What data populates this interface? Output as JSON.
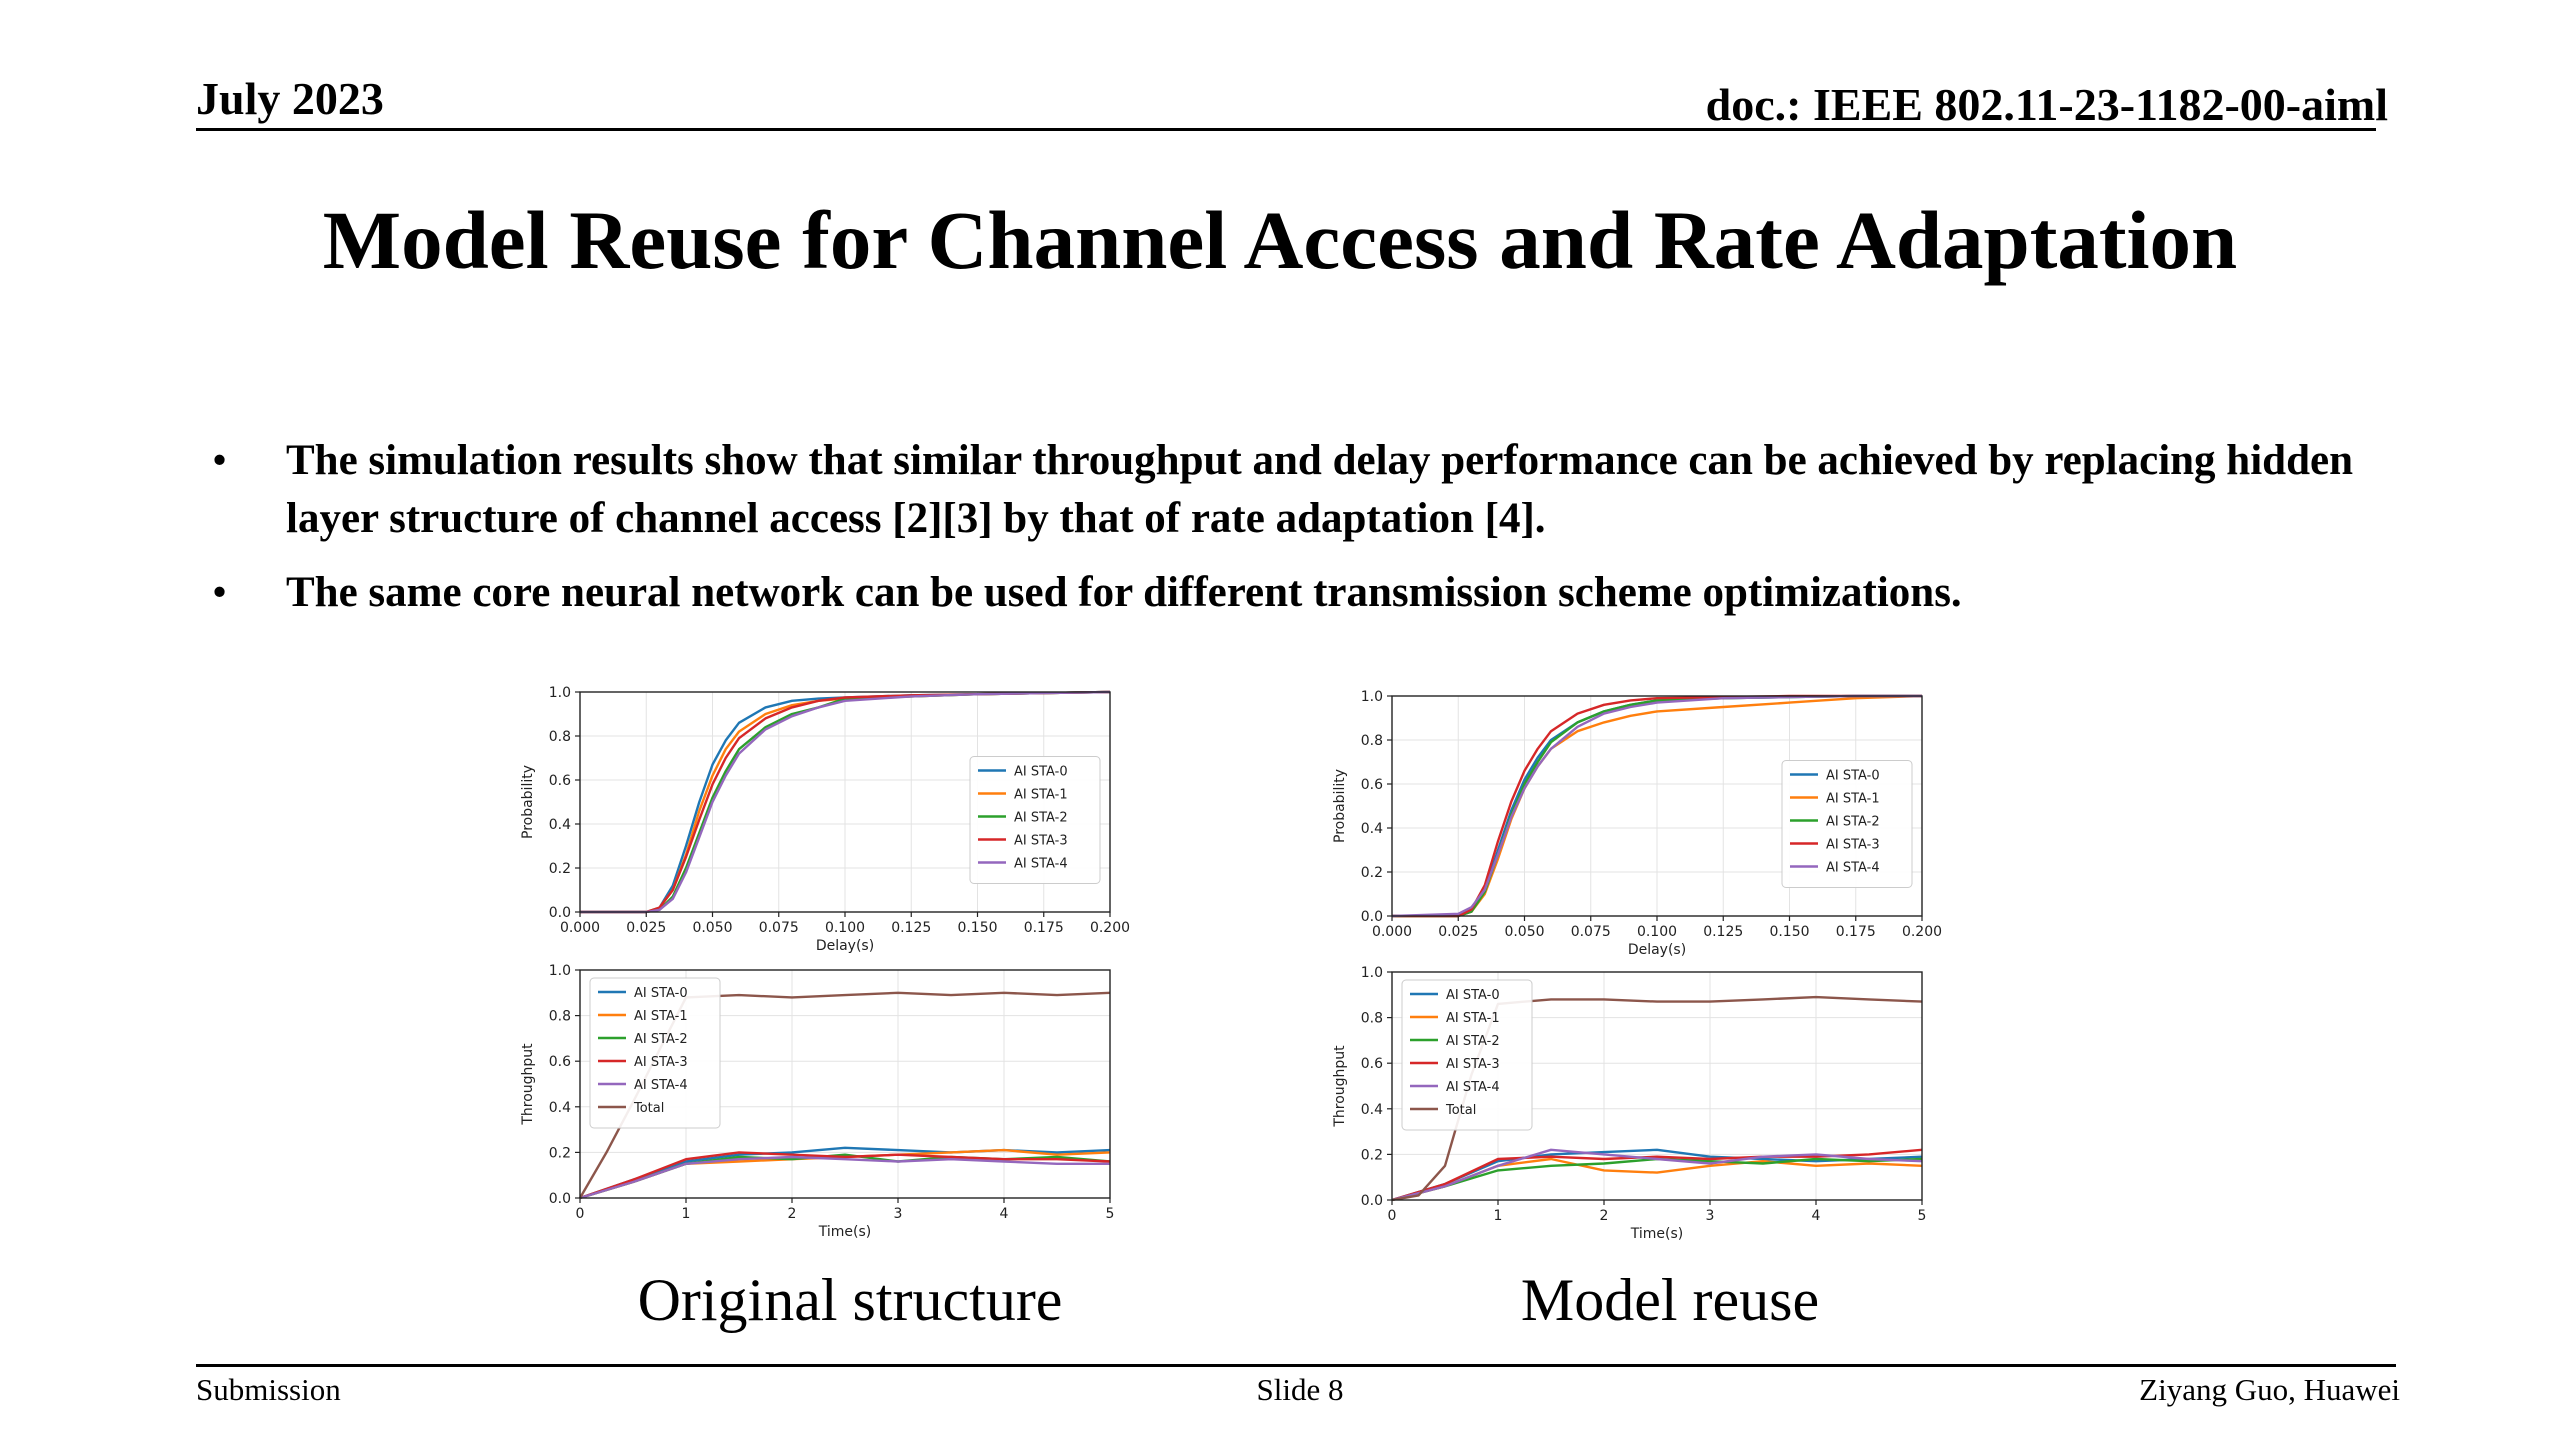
{
  "header": {
    "date": "July 2023",
    "doc": "doc.: IEEE 802.11-23-1182-00-aiml"
  },
  "title": "Model Reuse for Channel Access and Rate Adaptation",
  "bullets": [
    {
      "marker": "•",
      "text": "The simulation results show that similar throughput and delay performance can be achieved by replacing hidden layer structure of channel access [2][3] by that of rate adaptation [4]."
    },
    {
      "marker": "•",
      "text": "The same core neural network can be used for different transmission scheme optimizations."
    }
  ],
  "captions": {
    "left": "Original structure",
    "right": "Model reuse"
  },
  "footer": {
    "left": "Submission",
    "center": "Slide 8",
    "right": "Ziyang Guo, Huawei"
  },
  "colors": {
    "AI STA-0": "#1f77b4",
    "AI STA-1": "#ff7f0e",
    "AI STA-2": "#2ca02c",
    "AI STA-3": "#d62728",
    "AI STA-4": "#9467bd",
    "Total": "#8c564b"
  },
  "chart_data": [
    {
      "type": "line",
      "title": "",
      "xlabel": "Delay(s)",
      "ylabel": "Probability",
      "xlim": [
        0,
        0.2
      ],
      "ylim": [
        0,
        1.0
      ],
      "xticks": [
        0.0,
        0.025,
        0.05,
        0.075,
        0.1,
        0.125,
        0.15,
        0.175,
        0.2
      ],
      "xtick_labels": [
        "0.000",
        "0.025",
        "0.050",
        "0.075",
        "0.100",
        "0.125",
        "0.150",
        "0.175",
        "0.200"
      ],
      "yticks": [
        0.0,
        0.2,
        0.4,
        0.6,
        0.8,
        1.0
      ],
      "ytick_labels": [
        "0.0",
        "0.2",
        "0.4",
        "0.6",
        "0.8",
        "1.0"
      ],
      "grid": true,
      "legend": "center-right",
      "series": [
        {
          "name": "AI STA-0",
          "x": [
            0,
            0.025,
            0.03,
            0.035,
            0.04,
            0.045,
            0.05,
            0.055,
            0.06,
            0.07,
            0.08,
            0.09,
            0.1,
            0.125,
            0.15,
            0.175,
            0.2
          ],
          "y": [
            0,
            0,
            0.02,
            0.12,
            0.3,
            0.5,
            0.67,
            0.78,
            0.86,
            0.93,
            0.96,
            0.97,
            0.975,
            0.985,
            0.99,
            0.995,
            1.0
          ]
        },
        {
          "name": "AI STA-1",
          "x": [
            0,
            0.025,
            0.03,
            0.035,
            0.04,
            0.045,
            0.05,
            0.055,
            0.06,
            0.07,
            0.08,
            0.09,
            0.1,
            0.125,
            0.15,
            0.175,
            0.2
          ],
          "y": [
            0,
            0,
            0.02,
            0.1,
            0.26,
            0.46,
            0.62,
            0.74,
            0.82,
            0.9,
            0.94,
            0.96,
            0.97,
            0.98,
            0.99,
            0.995,
            1.0
          ]
        },
        {
          "name": "AI STA-2",
          "x": [
            0,
            0.025,
            0.03,
            0.035,
            0.04,
            0.045,
            0.05,
            0.055,
            0.06,
            0.07,
            0.08,
            0.09,
            0.1,
            0.125,
            0.15,
            0.175,
            0.2
          ],
          "y": [
            0,
            0,
            0.01,
            0.07,
            0.2,
            0.36,
            0.52,
            0.64,
            0.74,
            0.84,
            0.9,
            0.93,
            0.97,
            0.98,
            0.99,
            0.995,
            1.0
          ]
        },
        {
          "name": "AI STA-3",
          "x": [
            0,
            0.025,
            0.03,
            0.035,
            0.04,
            0.045,
            0.05,
            0.055,
            0.06,
            0.07,
            0.08,
            0.09,
            0.1,
            0.125,
            0.15,
            0.175,
            0.2
          ],
          "y": [
            0,
            0,
            0.02,
            0.1,
            0.25,
            0.42,
            0.58,
            0.7,
            0.79,
            0.88,
            0.93,
            0.96,
            0.975,
            0.985,
            0.99,
            0.995,
            1.0
          ]
        },
        {
          "name": "AI STA-4",
          "x": [
            0,
            0.025,
            0.03,
            0.035,
            0.04,
            0.045,
            0.05,
            0.055,
            0.06,
            0.07,
            0.08,
            0.09,
            0.1,
            0.125,
            0.15,
            0.175,
            0.2
          ],
          "y": [
            0,
            0,
            0.01,
            0.06,
            0.18,
            0.34,
            0.5,
            0.62,
            0.72,
            0.83,
            0.89,
            0.93,
            0.96,
            0.98,
            0.99,
            0.995,
            1.0
          ]
        }
      ]
    },
    {
      "type": "line",
      "title": "",
      "xlabel": "Time(s)",
      "ylabel": "Throughput",
      "xlim": [
        0,
        5
      ],
      "ylim": [
        0,
        1.0
      ],
      "xticks": [
        0,
        1,
        2,
        3,
        4,
        5
      ],
      "xtick_labels": [
        "0",
        "1",
        "2",
        "3",
        "4",
        "5"
      ],
      "yticks": [
        0.0,
        0.2,
        0.4,
        0.6,
        0.8,
        1.0
      ],
      "ytick_labels": [
        "0.0",
        "0.2",
        "0.4",
        "0.6",
        "0.8",
        "1.0"
      ],
      "grid": true,
      "legend": "top-left",
      "series": [
        {
          "name": "AI STA-0",
          "x": [
            0,
            0.5,
            1,
            1.5,
            2,
            2.5,
            3,
            3.5,
            4,
            4.5,
            5
          ],
          "y": [
            0,
            0.08,
            0.16,
            0.19,
            0.2,
            0.22,
            0.21,
            0.2,
            0.21,
            0.2,
            0.21
          ]
        },
        {
          "name": "AI STA-1",
          "x": [
            0,
            0.5,
            1,
            1.5,
            2,
            2.5,
            3,
            3.5,
            4,
            4.5,
            5
          ],
          "y": [
            0,
            0.07,
            0.15,
            0.16,
            0.17,
            0.18,
            0.19,
            0.2,
            0.21,
            0.19,
            0.2
          ]
        },
        {
          "name": "AI STA-2",
          "x": [
            0,
            0.5,
            1,
            1.5,
            2,
            2.5,
            3,
            3.5,
            4,
            4.5,
            5
          ],
          "y": [
            0,
            0.07,
            0.15,
            0.18,
            0.17,
            0.19,
            0.16,
            0.18,
            0.17,
            0.18,
            0.16
          ]
        },
        {
          "name": "AI STA-3",
          "x": [
            0,
            0.5,
            1,
            1.5,
            2,
            2.5,
            3,
            3.5,
            4,
            4.5,
            5
          ],
          "y": [
            0,
            0.08,
            0.17,
            0.2,
            0.19,
            0.18,
            0.19,
            0.18,
            0.17,
            0.17,
            0.16
          ]
        },
        {
          "name": "AI STA-4",
          "x": [
            0,
            0.5,
            1,
            1.5,
            2,
            2.5,
            3,
            3.5,
            4,
            4.5,
            5
          ],
          "y": [
            0,
            0.07,
            0.15,
            0.17,
            0.18,
            0.17,
            0.16,
            0.17,
            0.16,
            0.15,
            0.15
          ]
        },
        {
          "name": "Total",
          "x": [
            0,
            0.25,
            0.5,
            0.75,
            1,
            1.5,
            2,
            2.5,
            3,
            3.5,
            4,
            4.5,
            5
          ],
          "y": [
            0,
            0.2,
            0.42,
            0.65,
            0.88,
            0.89,
            0.88,
            0.89,
            0.9,
            0.89,
            0.9,
            0.89,
            0.9
          ]
        }
      ]
    },
    {
      "type": "line",
      "title": "",
      "xlabel": "Delay(s)",
      "ylabel": "Probability",
      "xlim": [
        0,
        0.2
      ],
      "ylim": [
        0,
        1.0
      ],
      "xticks": [
        0.0,
        0.025,
        0.05,
        0.075,
        0.1,
        0.125,
        0.15,
        0.175,
        0.2
      ],
      "xtick_labels": [
        "0.000",
        "0.025",
        "0.050",
        "0.075",
        "0.100",
        "0.125",
        "0.150",
        "0.175",
        "0.200"
      ],
      "yticks": [
        0.0,
        0.2,
        0.4,
        0.6,
        0.8,
        1.0
      ],
      "ytick_labels": [
        "0.0",
        "0.2",
        "0.4",
        "0.6",
        "0.8",
        "1.0"
      ],
      "grid": true,
      "legend": "center-right",
      "series": [
        {
          "name": "AI STA-0",
          "x": [
            0,
            0.025,
            0.03,
            0.035,
            0.04,
            0.045,
            0.05,
            0.055,
            0.06,
            0.07,
            0.08,
            0.09,
            0.1,
            0.125,
            0.15,
            0.175,
            0.2
          ],
          "y": [
            0,
            0,
            0.02,
            0.12,
            0.3,
            0.48,
            0.62,
            0.72,
            0.8,
            0.88,
            0.93,
            0.96,
            0.98,
            0.99,
            0.995,
            1.0,
            1.0
          ]
        },
        {
          "name": "AI STA-1",
          "x": [
            0,
            0.025,
            0.03,
            0.035,
            0.04,
            0.045,
            0.05,
            0.055,
            0.06,
            0.07,
            0.08,
            0.09,
            0.1,
            0.125,
            0.15,
            0.175,
            0.2
          ],
          "y": [
            0,
            0,
            0.02,
            0.1,
            0.26,
            0.44,
            0.58,
            0.68,
            0.76,
            0.84,
            0.88,
            0.91,
            0.93,
            0.95,
            0.97,
            0.99,
            1.0
          ]
        },
        {
          "name": "AI STA-2",
          "x": [
            0,
            0.025,
            0.03,
            0.035,
            0.04,
            0.045,
            0.05,
            0.055,
            0.06,
            0.07,
            0.08,
            0.09,
            0.1,
            0.125,
            0.15,
            0.175,
            0.2
          ],
          "y": [
            0,
            0,
            0.02,
            0.11,
            0.28,
            0.46,
            0.6,
            0.7,
            0.79,
            0.88,
            0.93,
            0.96,
            0.98,
            0.99,
            0.995,
            1.0,
            1.0
          ]
        },
        {
          "name": "AI STA-3",
          "x": [
            0,
            0.025,
            0.03,
            0.035,
            0.04,
            0.045,
            0.05,
            0.055,
            0.06,
            0.07,
            0.08,
            0.09,
            0.1,
            0.125,
            0.15,
            0.175,
            0.2
          ],
          "y": [
            0,
            0,
            0.03,
            0.14,
            0.34,
            0.52,
            0.66,
            0.76,
            0.84,
            0.92,
            0.96,
            0.98,
            0.99,
            0.995,
            1.0,
            1.0,
            1.0
          ]
        },
        {
          "name": "AI STA-4",
          "x": [
            0,
            0.025,
            0.03,
            0.035,
            0.04,
            0.045,
            0.05,
            0.055,
            0.06,
            0.07,
            0.08,
            0.09,
            0.1,
            0.125,
            0.15,
            0.175,
            0.2
          ],
          "y": [
            0,
            0.01,
            0.04,
            0.12,
            0.28,
            0.45,
            0.58,
            0.68,
            0.76,
            0.86,
            0.92,
            0.95,
            0.97,
            0.99,
            0.995,
            1.0,
            1.0
          ]
        }
      ]
    },
    {
      "type": "line",
      "title": "",
      "xlabel": "Time(s)",
      "ylabel": "Throughput",
      "xlim": [
        0,
        5
      ],
      "ylim": [
        0,
        1.0
      ],
      "xticks": [
        0,
        1,
        2,
        3,
        4,
        5
      ],
      "xtick_labels": [
        "0",
        "1",
        "2",
        "3",
        "4",
        "5"
      ],
      "yticks": [
        0.0,
        0.2,
        0.4,
        0.6,
        0.8,
        1.0
      ],
      "ytick_labels": [
        "0.0",
        "0.2",
        "0.4",
        "0.6",
        "0.8",
        "1.0"
      ],
      "grid": true,
      "legend": "top-left",
      "series": [
        {
          "name": "AI STA-0",
          "x": [
            0,
            0.5,
            1,
            1.5,
            2,
            2.5,
            3,
            3.5,
            4,
            4.5,
            5
          ],
          "y": [
            0,
            0.07,
            0.17,
            0.2,
            0.21,
            0.22,
            0.19,
            0.18,
            0.17,
            0.18,
            0.19
          ]
        },
        {
          "name": "AI STA-1",
          "x": [
            0,
            0.5,
            1,
            1.5,
            2,
            2.5,
            3,
            3.5,
            4,
            4.5,
            5
          ],
          "y": [
            0,
            0.06,
            0.15,
            0.18,
            0.13,
            0.12,
            0.15,
            0.17,
            0.15,
            0.16,
            0.15
          ]
        },
        {
          "name": "AI STA-2",
          "x": [
            0,
            0.5,
            1,
            1.5,
            2,
            2.5,
            3,
            3.5,
            4,
            4.5,
            5
          ],
          "y": [
            0,
            0.06,
            0.13,
            0.15,
            0.16,
            0.18,
            0.17,
            0.16,
            0.18,
            0.17,
            0.18
          ]
        },
        {
          "name": "AI STA-3",
          "x": [
            0,
            0.5,
            1,
            1.5,
            2,
            2.5,
            3,
            3.5,
            4,
            4.5,
            5
          ],
          "y": [
            0,
            0.07,
            0.18,
            0.19,
            0.18,
            0.19,
            0.18,
            0.19,
            0.19,
            0.2,
            0.22
          ]
        },
        {
          "name": "AI STA-4",
          "x": [
            0,
            0.5,
            1,
            1.5,
            2,
            2.5,
            3,
            3.5,
            4,
            4.5,
            5
          ],
          "y": [
            0,
            0.06,
            0.15,
            0.22,
            0.2,
            0.18,
            0.16,
            0.19,
            0.2,
            0.18,
            0.17
          ]
        },
        {
          "name": "Total",
          "x": [
            0,
            0.25,
            0.5,
            0.75,
            1,
            1.5,
            2,
            2.5,
            3,
            3.5,
            4,
            4.5,
            5
          ],
          "y": [
            0,
            0.02,
            0.15,
            0.55,
            0.86,
            0.88,
            0.88,
            0.87,
            0.87,
            0.88,
            0.89,
            0.88,
            0.87
          ]
        }
      ]
    }
  ]
}
